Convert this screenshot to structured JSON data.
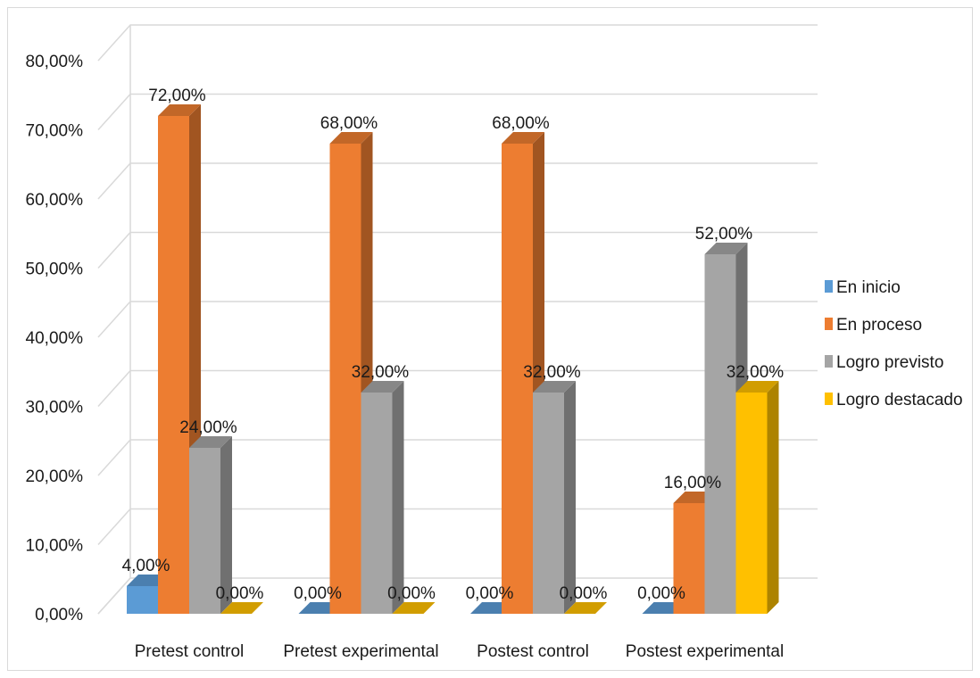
{
  "chart_data": {
    "type": "bar",
    "title": "",
    "xlabel": "",
    "ylabel": "",
    "ylim": [
      0,
      80
    ],
    "ytick_values": [
      0,
      10,
      20,
      30,
      40,
      50,
      60,
      70,
      80
    ],
    "ytick_labels": [
      "0,00%",
      "10,00%",
      "20,00%",
      "30,00%",
      "40,00%",
      "50,00%",
      "60,00%",
      "70,00%",
      "80,00%"
    ],
    "grid": true,
    "legend_position": "right",
    "categories": [
      "Pretest control",
      "Pretest experimental",
      "Postest control",
      "Postest experimental"
    ],
    "series": [
      {
        "name": "En inicio",
        "values": [
          4,
          0,
          0,
          0
        ],
        "labels": [
          "4,00%",
          "0,00%",
          "0,00%",
          "0,00%"
        ],
        "color": "#5b9bd5"
      },
      {
        "name": "En proceso",
        "values": [
          72,
          68,
          68,
          16
        ],
        "labels": [
          "72,00%",
          "68,00%",
          "68,00%",
          "16,00%"
        ],
        "color": "#ed7d31"
      },
      {
        "name": "Logro previsto",
        "values": [
          24,
          32,
          32,
          52
        ],
        "labels": [
          "24,00%",
          "32,00%",
          "32,00%",
          "52,00%"
        ],
        "color": "#a5a5a5"
      },
      {
        "name": "Logro destacado",
        "values": [
          0,
          0,
          0,
          32
        ],
        "labels": [
          "0,00%",
          "0,00%",
          "0,00%",
          "32,00%"
        ],
        "color": "#ffc000"
      }
    ]
  }
}
